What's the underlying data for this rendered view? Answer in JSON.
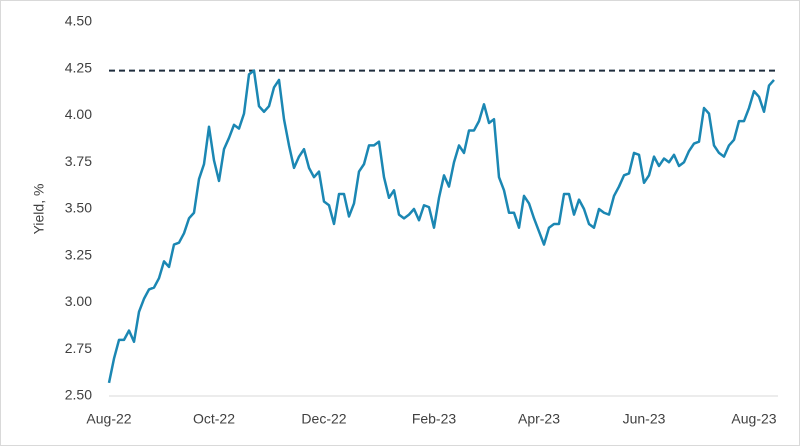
{
  "chart_data": {
    "type": "line",
    "y_label": "Yield, %",
    "categories": [
      "Aug-22",
      null,
      null,
      null,
      null,
      null,
      null,
      null,
      null,
      null,
      null,
      null,
      null,
      null,
      null,
      null,
      null,
      null,
      null,
      null,
      null,
      "Oct-22",
      null,
      null,
      null,
      null,
      null,
      null,
      null,
      null,
      null,
      null,
      null,
      null,
      null,
      null,
      null,
      null,
      null,
      null,
      null,
      null,
      null,
      "Dec-22",
      null,
      null,
      null,
      null,
      null,
      null,
      null,
      null,
      null,
      null,
      null,
      null,
      null,
      null,
      null,
      null,
      null,
      null,
      null,
      null,
      null,
      "Feb-23",
      null,
      null,
      null,
      null,
      null,
      null,
      null,
      null,
      null,
      null,
      null,
      null,
      null,
      null,
      null,
      null,
      null,
      null,
      null,
      null,
      "Apr-23",
      null,
      null,
      null,
      null,
      null,
      null,
      null,
      null,
      null,
      null,
      null,
      null,
      null,
      null,
      null,
      null,
      null,
      null,
      null,
      null,
      "Jun-23",
      null,
      null,
      null,
      null,
      null,
      null,
      null,
      null,
      null,
      null,
      null,
      null,
      null,
      null,
      null,
      null,
      null,
      null,
      null,
      null,
      null,
      "Aug-23",
      null,
      null,
      null,
      null
    ],
    "values": [
      2.57,
      2.7,
      2.8,
      2.8,
      2.85,
      2.79,
      2.95,
      3.02,
      3.07,
      3.08,
      3.13,
      3.22,
      3.19,
      3.31,
      3.32,
      3.37,
      3.45,
      3.48,
      3.66,
      3.74,
      3.94,
      3.76,
      3.65,
      3.82,
      3.88,
      3.95,
      3.93,
      4.01,
      4.22,
      4.24,
      4.05,
      4.02,
      4.05,
      4.15,
      4.19,
      3.98,
      3.84,
      3.72,
      3.78,
      3.82,
      3.72,
      3.67,
      3.7,
      3.54,
      3.52,
      3.42,
      3.58,
      3.58,
      3.46,
      3.53,
      3.7,
      3.74,
      3.84,
      3.84,
      3.86,
      3.67,
      3.56,
      3.6,
      3.47,
      3.45,
      3.47,
      3.5,
      3.44,
      3.52,
      3.51,
      3.4,
      3.56,
      3.68,
      3.62,
      3.75,
      3.84,
      3.8,
      3.92,
      3.92,
      3.97,
      4.06,
      3.96,
      3.98,
      3.67,
      3.6,
      3.48,
      3.48,
      3.4,
      3.57,
      3.53,
      3.45,
      3.38,
      3.31,
      3.4,
      3.42,
      3.42,
      3.58,
      3.58,
      3.47,
      3.55,
      3.5,
      3.42,
      3.4,
      3.5,
      3.48,
      3.47,
      3.57,
      3.62,
      3.68,
      3.69,
      3.8,
      3.79,
      3.64,
      3.68,
      3.78,
      3.73,
      3.77,
      3.75,
      3.79,
      3.73,
      3.75,
      3.81,
      3.85,
      3.86,
      4.04,
      4.01,
      3.84,
      3.8,
      3.78,
      3.84,
      3.87,
      3.97,
      3.97,
      4.04,
      4.13,
      4.1,
      4.02,
      4.16,
      4.19
    ],
    "color": "#1b87b3",
    "reference_line": {
      "value": 4.24,
      "color": "#1f2d3d",
      "style": "dashed"
    },
    "ylim": [
      2.5,
      4.5
    ],
    "yticks": [
      {
        "value": 2.5,
        "label": "2.50"
      },
      {
        "value": 2.75,
        "label": "2.75"
      },
      {
        "value": 3,
        "label": "3.00"
      },
      {
        "value": 3.25,
        "label": "3.25"
      },
      {
        "value": 3.5,
        "label": "3.50"
      },
      {
        "value": 3.75,
        "label": "3.75"
      },
      {
        "value": 4,
        "label": "4.00"
      },
      {
        "value": 4.25,
        "label": "4.25"
      },
      {
        "value": 4.5,
        "label": "4.50"
      }
    ],
    "grid": false
  }
}
